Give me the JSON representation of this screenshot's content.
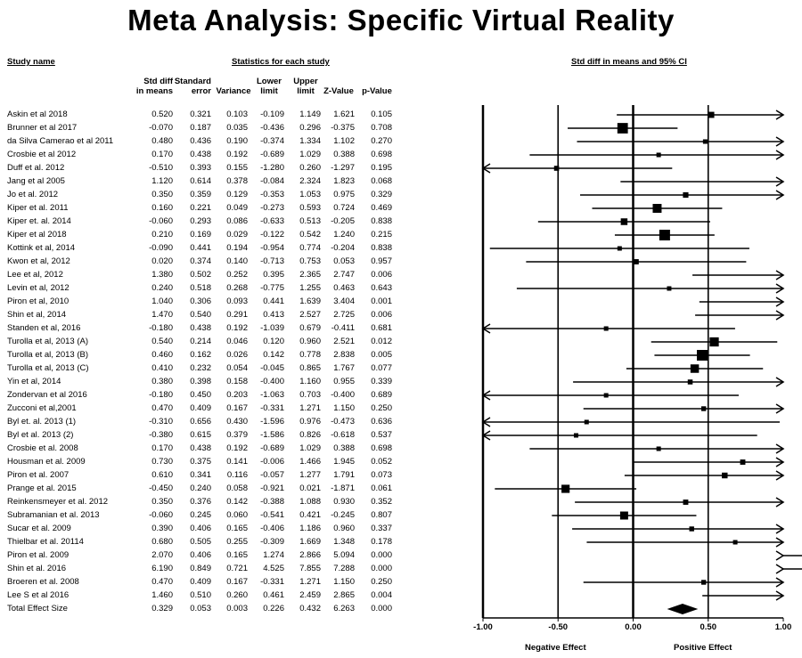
{
  "title": "Meta Analysis: Specific Virtual Reality",
  "headers": {
    "study_name": "Study name",
    "stats_group": "Statistics for each study",
    "ci_group": "Std diff in means and 95% CI",
    "columns": [
      [
        "Std diff",
        "in means"
      ],
      [
        "Standard",
        "error"
      ],
      [
        "",
        "Variance"
      ],
      [
        "Lower",
        "limit"
      ],
      [
        "Upper",
        "limit"
      ],
      [
        "",
        "Z-Value"
      ],
      [
        "",
        "p-Value"
      ]
    ]
  },
  "chart_data": {
    "type": "forest",
    "title": "Meta Analysis: Specific Virtual Reality",
    "xlabel": "",
    "xlim": [
      -1.0,
      1.0
    ],
    "x_ticks": [
      "-1.00",
      "-0.50",
      "0.00",
      "0.50",
      "1.00"
    ],
    "x_tick_values": [
      -1.0,
      -0.5,
      0.0,
      0.5,
      1.0
    ],
    "left_label": "Negative Effect",
    "right_label": "Positive Effect",
    "studies": [
      {
        "name": "Askin et al 2018",
        "smd": "0.520",
        "se": "0.321",
        "var": "0.103",
        "lower": "-0.109",
        "upper": "1.149",
        "z": "1.621",
        "p": "0.105"
      },
      {
        "name": "Brunner et al 2017",
        "smd": "-0.070",
        "se": "0.187",
        "var": "0.035",
        "lower": "-0.436",
        "upper": "0.296",
        "z": "-0.375",
        "p": "0.708"
      },
      {
        "name": "da Silva Camerao et al 2011",
        "smd": "0.480",
        "se": "0.436",
        "var": "0.190",
        "lower": "-0.374",
        "upper": "1.334",
        "z": "1.102",
        "p": "0.270"
      },
      {
        "name": "Crosbie et al 2012",
        "smd": "0.170",
        "se": "0.438",
        "var": "0.192",
        "lower": "-0.689",
        "upper": "1.029",
        "z": "0.388",
        "p": "0.698"
      },
      {
        "name": "Duff et al. 2012",
        "smd": "-0.510",
        "se": "0.393",
        "var": "0.155",
        "lower": "-1.280",
        "upper": "0.260",
        "z": "-1.297",
        "p": "0.195"
      },
      {
        "name": "Jang et al 2005",
        "smd": "1.120",
        "se": "0.614",
        "var": "0.378",
        "lower": "-0.084",
        "upper": "2.324",
        "z": "1.823",
        "p": "0.068"
      },
      {
        "name": "Jo et al. 2012",
        "smd": "0.350",
        "se": "0.359",
        "var": "0.129",
        "lower": "-0.353",
        "upper": "1.053",
        "z": "0.975",
        "p": "0.329"
      },
      {
        "name": "Kiper et al. 2011",
        "smd": "0.160",
        "se": "0.221",
        "var": "0.049",
        "lower": "-0.273",
        "upper": "0.593",
        "z": "0.724",
        "p": "0.469"
      },
      {
        "name": "Kiper et. al. 2014",
        "smd": "-0.060",
        "se": "0.293",
        "var": "0.086",
        "lower": "-0.633",
        "upper": "0.513",
        "z": "-0.205",
        "p": "0.838"
      },
      {
        "name": "Kiper et al 2018",
        "smd": "0.210",
        "se": "0.169",
        "var": "0.029",
        "lower": "-0.122",
        "upper": "0.542",
        "z": "1.240",
        "p": "0.215"
      },
      {
        "name": "Kottink et al, 2014",
        "smd": "-0.090",
        "se": "0.441",
        "var": "0.194",
        "lower": "-0.954",
        "upper": "0.774",
        "z": "-0.204",
        "p": "0.838"
      },
      {
        "name": "Kwon et al, 2012",
        "smd": "0.020",
        "se": "0.374",
        "var": "0.140",
        "lower": "-0.713",
        "upper": "0.753",
        "z": "0.053",
        "p": "0.957"
      },
      {
        "name": "Lee et al, 2012",
        "smd": "1.380",
        "se": "0.502",
        "var": "0.252",
        "lower": "0.395",
        "upper": "2.365",
        "z": "2.747",
        "p": "0.006"
      },
      {
        "name": "Levin et al, 2012",
        "smd": "0.240",
        "se": "0.518",
        "var": "0.268",
        "lower": "-0.775",
        "upper": "1.255",
        "z": "0.463",
        "p": "0.643"
      },
      {
        "name": "Piron et al, 2010",
        "smd": "1.040",
        "se": "0.306",
        "var": "0.093",
        "lower": "0.441",
        "upper": "1.639",
        "z": "3.404",
        "p": "0.001"
      },
      {
        "name": "Shin et al, 2014",
        "smd": "1.470",
        "se": "0.540",
        "var": "0.291",
        "lower": "0.413",
        "upper": "2.527",
        "z": "2.725",
        "p": "0.006"
      },
      {
        "name": "Standen et al, 2016",
        "smd": "-0.180",
        "se": "0.438",
        "var": "0.192",
        "lower": "-1.039",
        "upper": "0.679",
        "z": "-0.411",
        "p": "0.681"
      },
      {
        "name": "Turolla et al, 2013 (A)",
        "smd": "0.540",
        "se": "0.214",
        "var": "0.046",
        "lower": "0.120",
        "upper": "0.960",
        "z": "2.521",
        "p": "0.012"
      },
      {
        "name": "Turolla et al, 2013 (B)",
        "smd": "0.460",
        "se": "0.162",
        "var": "0.026",
        "lower": "0.142",
        "upper": "0.778",
        "z": "2.838",
        "p": "0.005"
      },
      {
        "name": "Turolla et al, 2013 (C)",
        "smd": "0.410",
        "se": "0.232",
        "var": "0.054",
        "lower": "-0.045",
        "upper": "0.865",
        "z": "1.767",
        "p": "0.077"
      },
      {
        "name": "Yin et al, 2014",
        "smd": "0.380",
        "se": "0.398",
        "var": "0.158",
        "lower": "-0.400",
        "upper": "1.160",
        "z": "0.955",
        "p": "0.339"
      },
      {
        "name": "Zondervan et al 2016",
        "smd": "-0.180",
        "se": "0.450",
        "var": "0.203",
        "lower": "-1.063",
        "upper": "0.703",
        "z": "-0.400",
        "p": "0.689"
      },
      {
        "name": "Zucconi et al,2001",
        "smd": "0.470",
        "se": "0.409",
        "var": "0.167",
        "lower": "-0.331",
        "upper": "1.271",
        "z": "1.150",
        "p": "0.250"
      },
      {
        "name": "Byl et. al. 2013 (1)",
        "smd": "-0.310",
        "se": "0.656",
        "var": "0.430",
        "lower": "-1.596",
        "upper": "0.976",
        "z": "-0.473",
        "p": "0.636"
      },
      {
        "name": "Byl et al. 2013 (2)",
        "smd": "-0.380",
        "se": "0.615",
        "var": "0.379",
        "lower": "-1.586",
        "upper": "0.826",
        "z": "-0.618",
        "p": "0.537"
      },
      {
        "name": "Crosbie et al. 2008",
        "smd": "0.170",
        "se": "0.438",
        "var": "0.192",
        "lower": "-0.689",
        "upper": "1.029",
        "z": "0.388",
        "p": "0.698"
      },
      {
        "name": "Housman et al. 2009",
        "smd": "0.730",
        "se": "0.375",
        "var": "0.141",
        "lower": "-0.006",
        "upper": "1.466",
        "z": "1.945",
        "p": "0.052"
      },
      {
        "name": "Piron et al. 2007",
        "smd": "0.610",
        "se": "0.341",
        "var": "0.116",
        "lower": "-0.057",
        "upper": "1.277",
        "z": "1.791",
        "p": "0.073"
      },
      {
        "name": "Prange et al. 2015",
        "smd": "-0.450",
        "se": "0.240",
        "var": "0.058",
        "lower": "-0.921",
        "upper": "0.021",
        "z": "-1.871",
        "p": "0.061"
      },
      {
        "name": "Reinkensmeyer et al. 2012",
        "smd": "0.350",
        "se": "0.376",
        "var": "0.142",
        "lower": "-0.388",
        "upper": "1.088",
        "z": "0.930",
        "p": "0.352"
      },
      {
        "name": "Subramanian et al. 2013",
        "smd": "-0.060",
        "se": "0.245",
        "var": "0.060",
        "lower": "-0.541",
        "upper": "0.421",
        "z": "-0.245",
        "p": "0.807"
      },
      {
        "name": "Sucar et al. 2009",
        "smd": "0.390",
        "se": "0.406",
        "var": "0.165",
        "lower": "-0.406",
        "upper": "1.186",
        "z": "0.960",
        "p": "0.337"
      },
      {
        "name": "Thielbar et al. 20114",
        "smd": "0.680",
        "se": "0.505",
        "var": "0.255",
        "lower": "-0.309",
        "upper": "1.669",
        "z": "1.348",
        "p": "0.178"
      },
      {
        "name": "Piron et al. 2009",
        "smd": "2.070",
        "se": "0.406",
        "var": "0.165",
        "lower": "1.274",
        "upper": "2.866",
        "z": "5.094",
        "p": "0.000"
      },
      {
        "name": "Shin et al. 2016",
        "smd": "6.190",
        "se": "0.849",
        "var": "0.721",
        "lower": "4.525",
        "upper": "7.855",
        "z": "7.288",
        "p": "0.000"
      },
      {
        "name": "Broeren et al. 2008",
        "smd": "0.470",
        "se": "0.409",
        "var": "0.167",
        "lower": "-0.331",
        "upper": "1.271",
        "z": "1.150",
        "p": "0.250"
      },
      {
        "name": "Lee S et al 2016",
        "smd": "1.460",
        "se": "0.510",
        "var": "0.260",
        "lower": "0.461",
        "upper": "2.459",
        "z": "2.865",
        "p": "0.004"
      }
    ],
    "total": {
      "name": "Total Effect Size",
      "smd": "0.329",
      "se": "0.053",
      "var": "0.003",
      "lower": "0.226",
      "upper": "0.432",
      "z": "6.263",
      "p": "0.000"
    }
  }
}
